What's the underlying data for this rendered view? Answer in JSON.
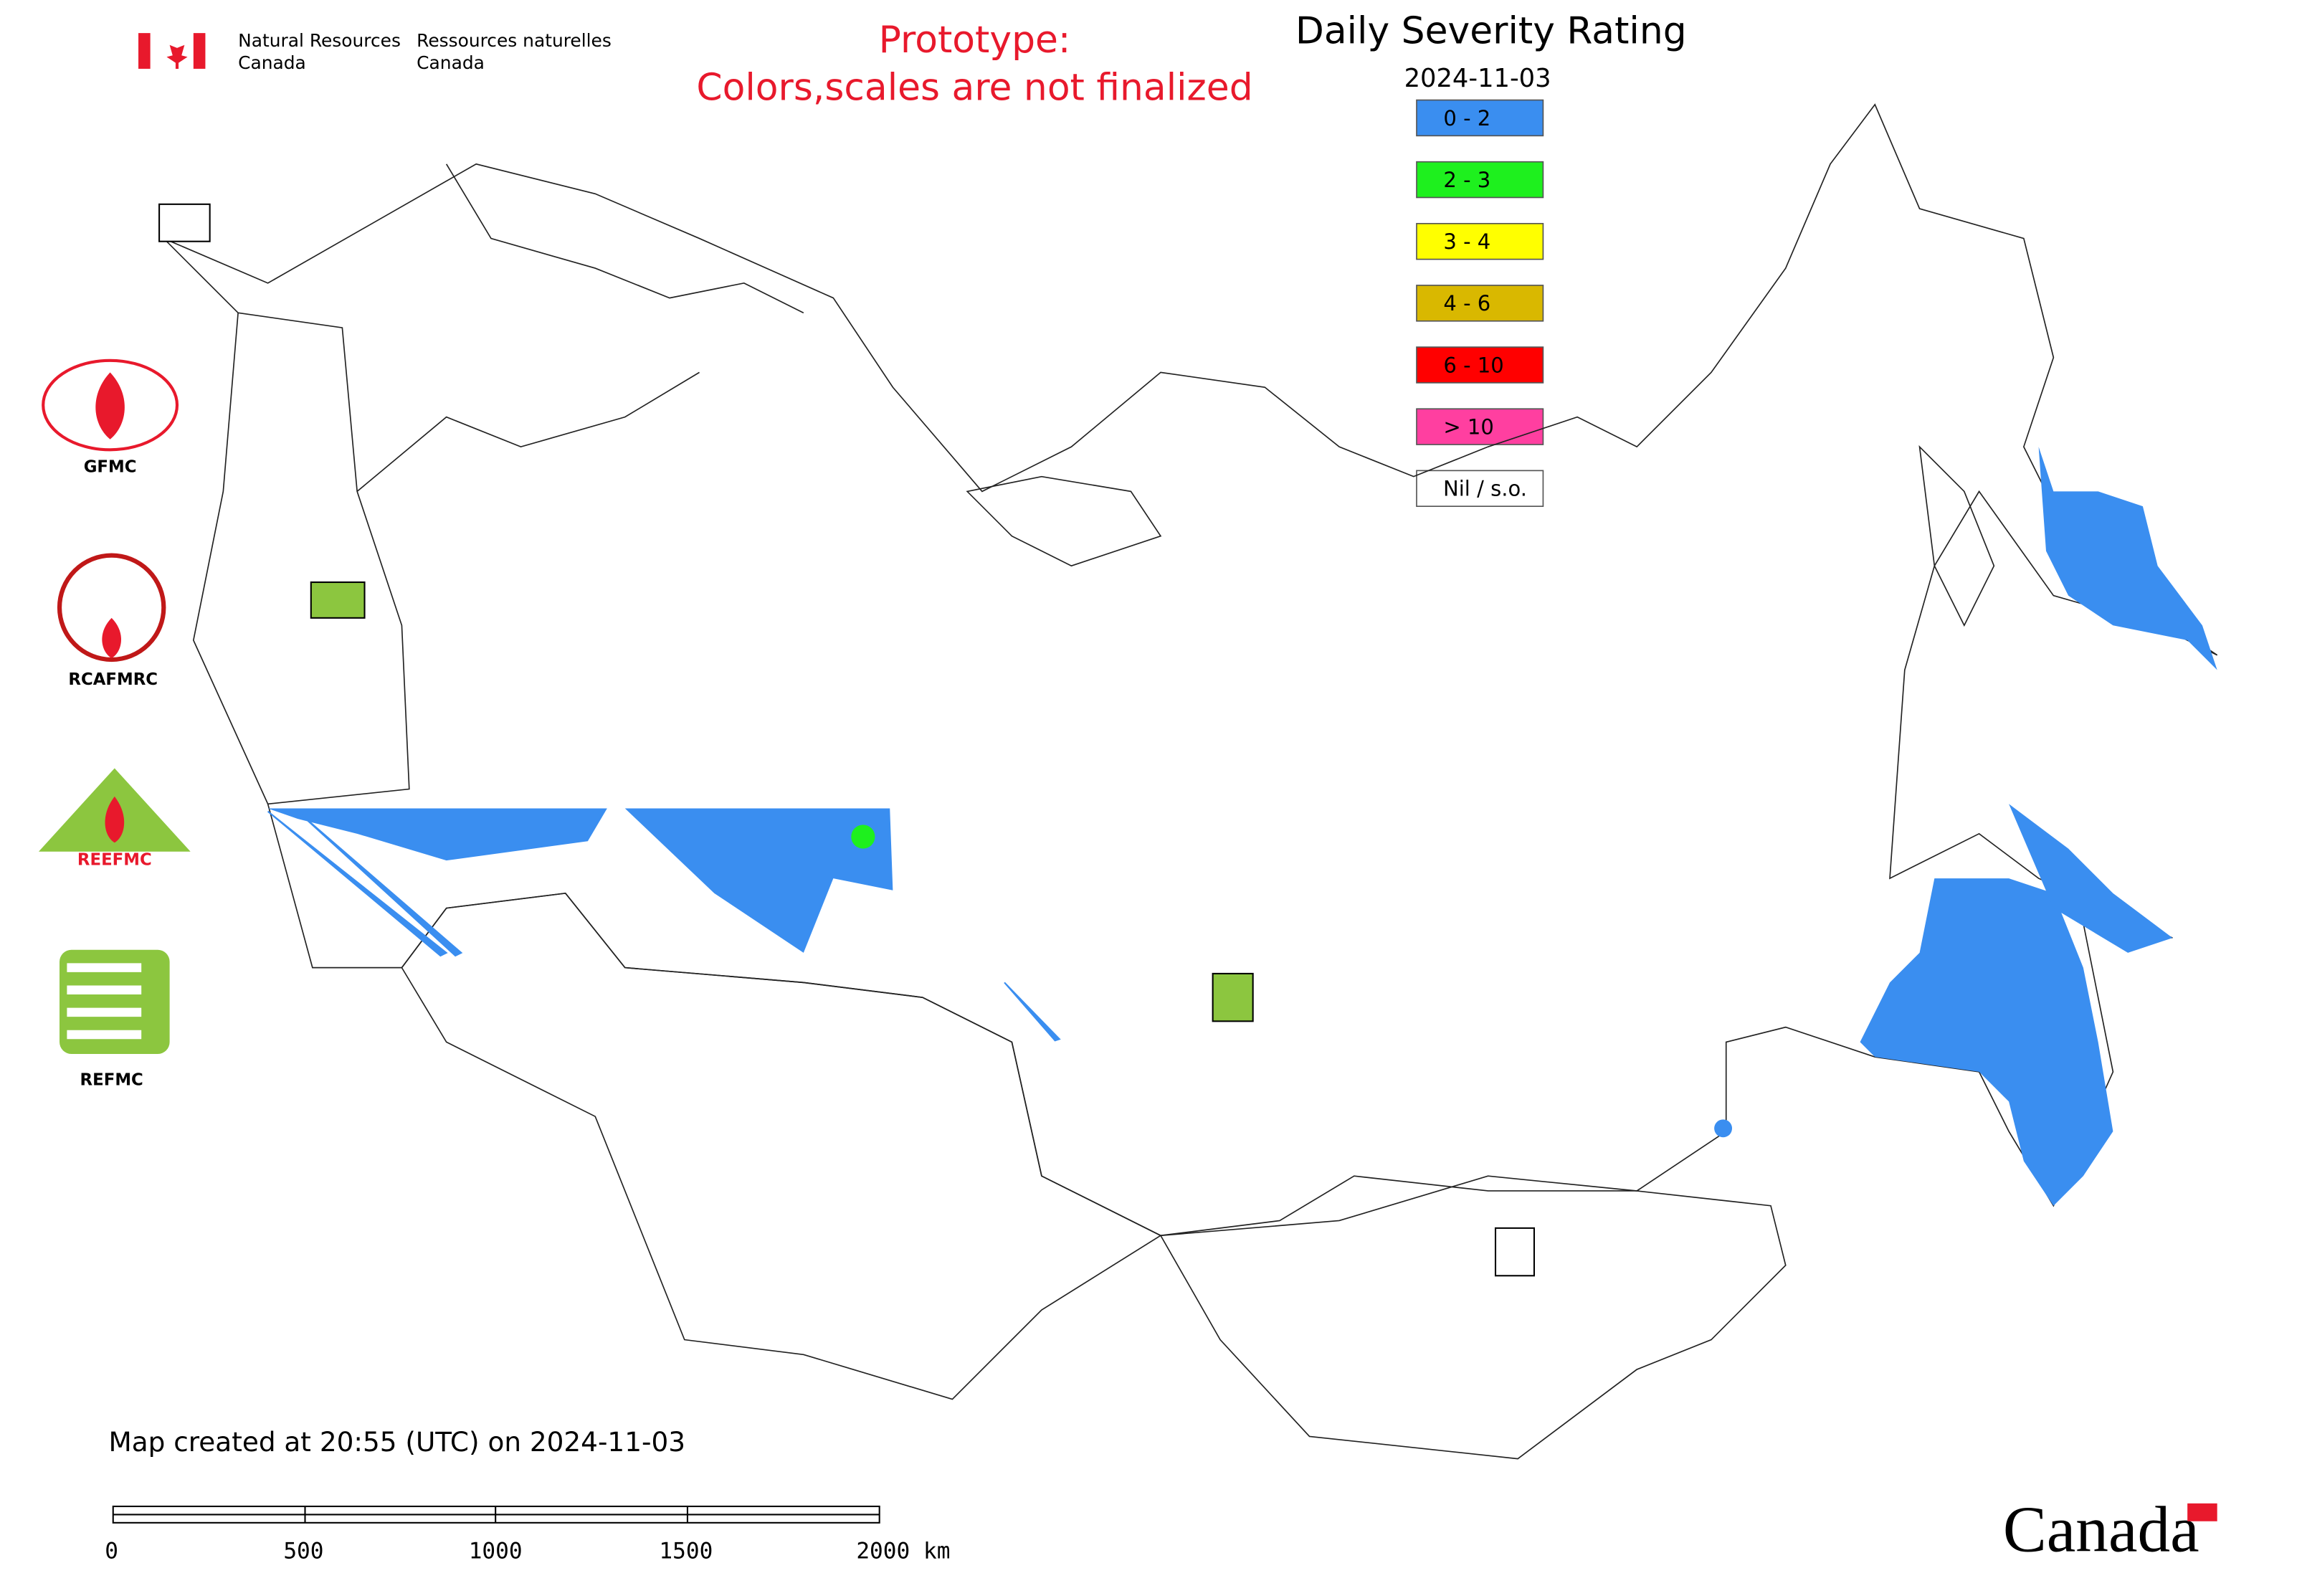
{
  "header": {
    "agency_en": [
      "Natural Resources",
      "Canada"
    ],
    "agency_fr": [
      "Ressources naturelles",
      "Canada"
    ],
    "notice": [
      "Prototype:",
      "Colors,scales are not finalized"
    ]
  },
  "map": {
    "title": "Daily Severity Rating",
    "date": "2024-11-03",
    "legend": [
      {
        "label": "0 - 2",
        "color": "#3a8ef0"
      },
      {
        "label": "2 - 3",
        "color": "#1ef01e"
      },
      {
        "label": "3 - 4",
        "color": "#ffff00"
      },
      {
        "label": "4 - 6",
        "color": "#d9b800"
      },
      {
        "label": "6 - 10",
        "color": "#ff0000"
      },
      {
        "label": "> 10",
        "color": "#ff3fa0"
      },
      {
        "label": "Nil / s.o.",
        "color": "#ffffff"
      }
    ],
    "centers": [
      "GFMC",
      "RCAFMRC",
      "REEFMC",
      "REFMC"
    ],
    "created": "Map created at 20:55 (UTC) on 2024-11-03",
    "scale_labels": [
      "0",
      "500",
      "1000",
      "1500",
      "2000 km"
    ],
    "wordmark": "Canada"
  }
}
